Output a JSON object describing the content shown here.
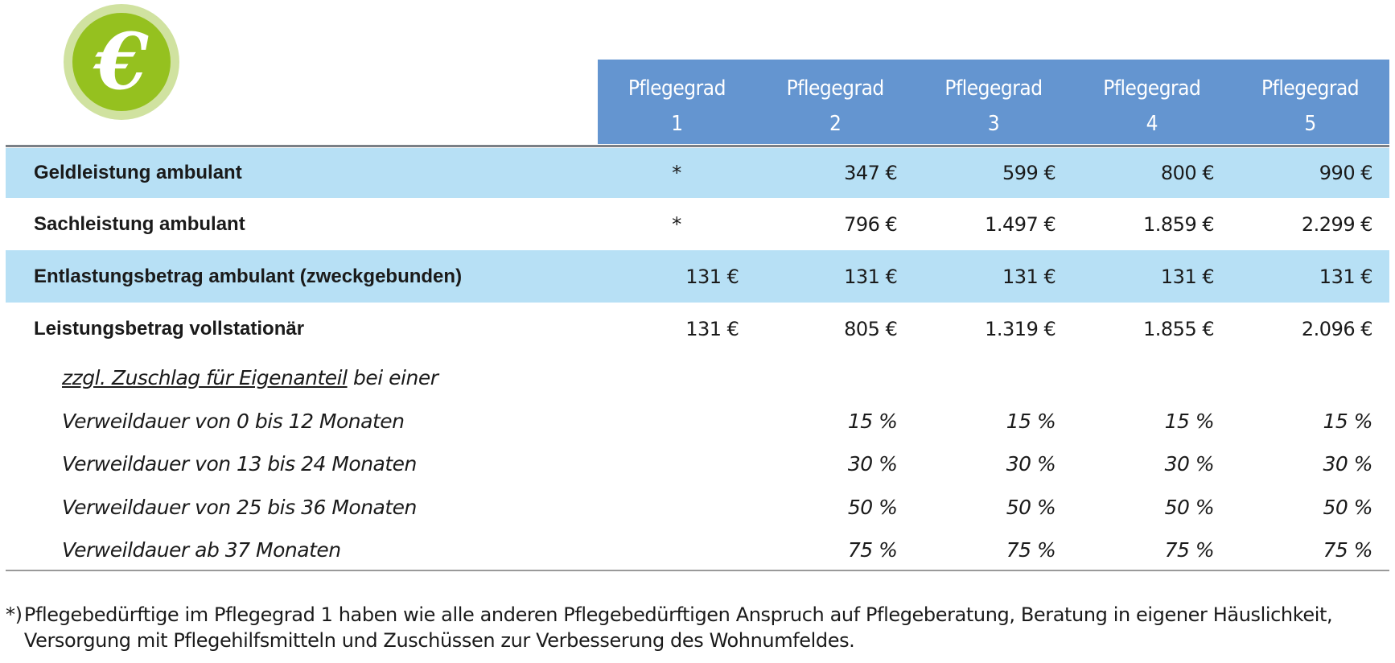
{
  "logo": {
    "symbol": "€",
    "colors": {
      "outer": "#d0e2a0",
      "inner": "#95c11f"
    }
  },
  "header": {
    "columns": [
      {
        "line1": "Pflegegrad",
        "line2": "1"
      },
      {
        "line1": "Pflegegrad",
        "line2": "2"
      },
      {
        "line1": "Pflegegrad",
        "line2": "3"
      },
      {
        "line1": "Pflegegrad",
        "line2": "4"
      },
      {
        "line1": "Pflegegrad",
        "line2": "5"
      }
    ],
    "color": "#6495d0"
  },
  "rows": [
    {
      "label": "Geldleistung ambulant",
      "values": [
        "*",
        "347 €",
        "599 €",
        "800 €",
        "990 €"
      ],
      "highlight": true
    },
    {
      "label": "Sachleistung ambulant",
      "values": [
        "*",
        "796 €",
        "1.497 €",
        "1.859 €",
        "2.299 €"
      ],
      "highlight": false
    },
    {
      "label": "Entlastungsbetrag ambulant (zweckgebunden)",
      "values": [
        "131 €",
        "131 €",
        "131 €",
        "131 €",
        "131 €"
      ],
      "highlight": true
    },
    {
      "label": "Leistungsbetrag vollstationär",
      "values": [
        "131 €",
        "805 €",
        "1.319 €",
        "1.855 €",
        "2.096 €"
      ],
      "highlight": false
    }
  ],
  "supplement": {
    "intro_underlined": "zzgl. Zuschlag für Eigenanteil",
    "intro_rest": " bei einer",
    "rows": [
      {
        "label": "Verweildauer von 0 bis 12 Monaten",
        "values": [
          "",
          "15 %",
          "15 %",
          "15 %",
          "15 %"
        ]
      },
      {
        "label": "Verweildauer von 13 bis 24 Monaten",
        "values": [
          "",
          "30 %",
          "30 %",
          "30 %",
          "30 %"
        ]
      },
      {
        "label": "Verweildauer von 25 bis 36 Monaten",
        "values": [
          "",
          "50 %",
          "50 %",
          "50 %",
          "50 %"
        ]
      },
      {
        "label": "Verweildauer ab 37 Monaten",
        "values": [
          "",
          "75 %",
          "75 %",
          "75 %",
          "75 %"
        ]
      }
    ]
  },
  "footnote": {
    "mark": "*)",
    "text": "Pflegebedürftige im Pflegegrad 1 haben wie alle anderen Pflegebedürftigen Anspruch auf Pflegeberatung, Beratung in eigener Häuslichkeit, Versorgung mit Pflegehilfsmitteln und Zuschüssen zur Verbesserung des Wohnumfeldes."
  },
  "row_highlight_color": "#b7e0f5"
}
